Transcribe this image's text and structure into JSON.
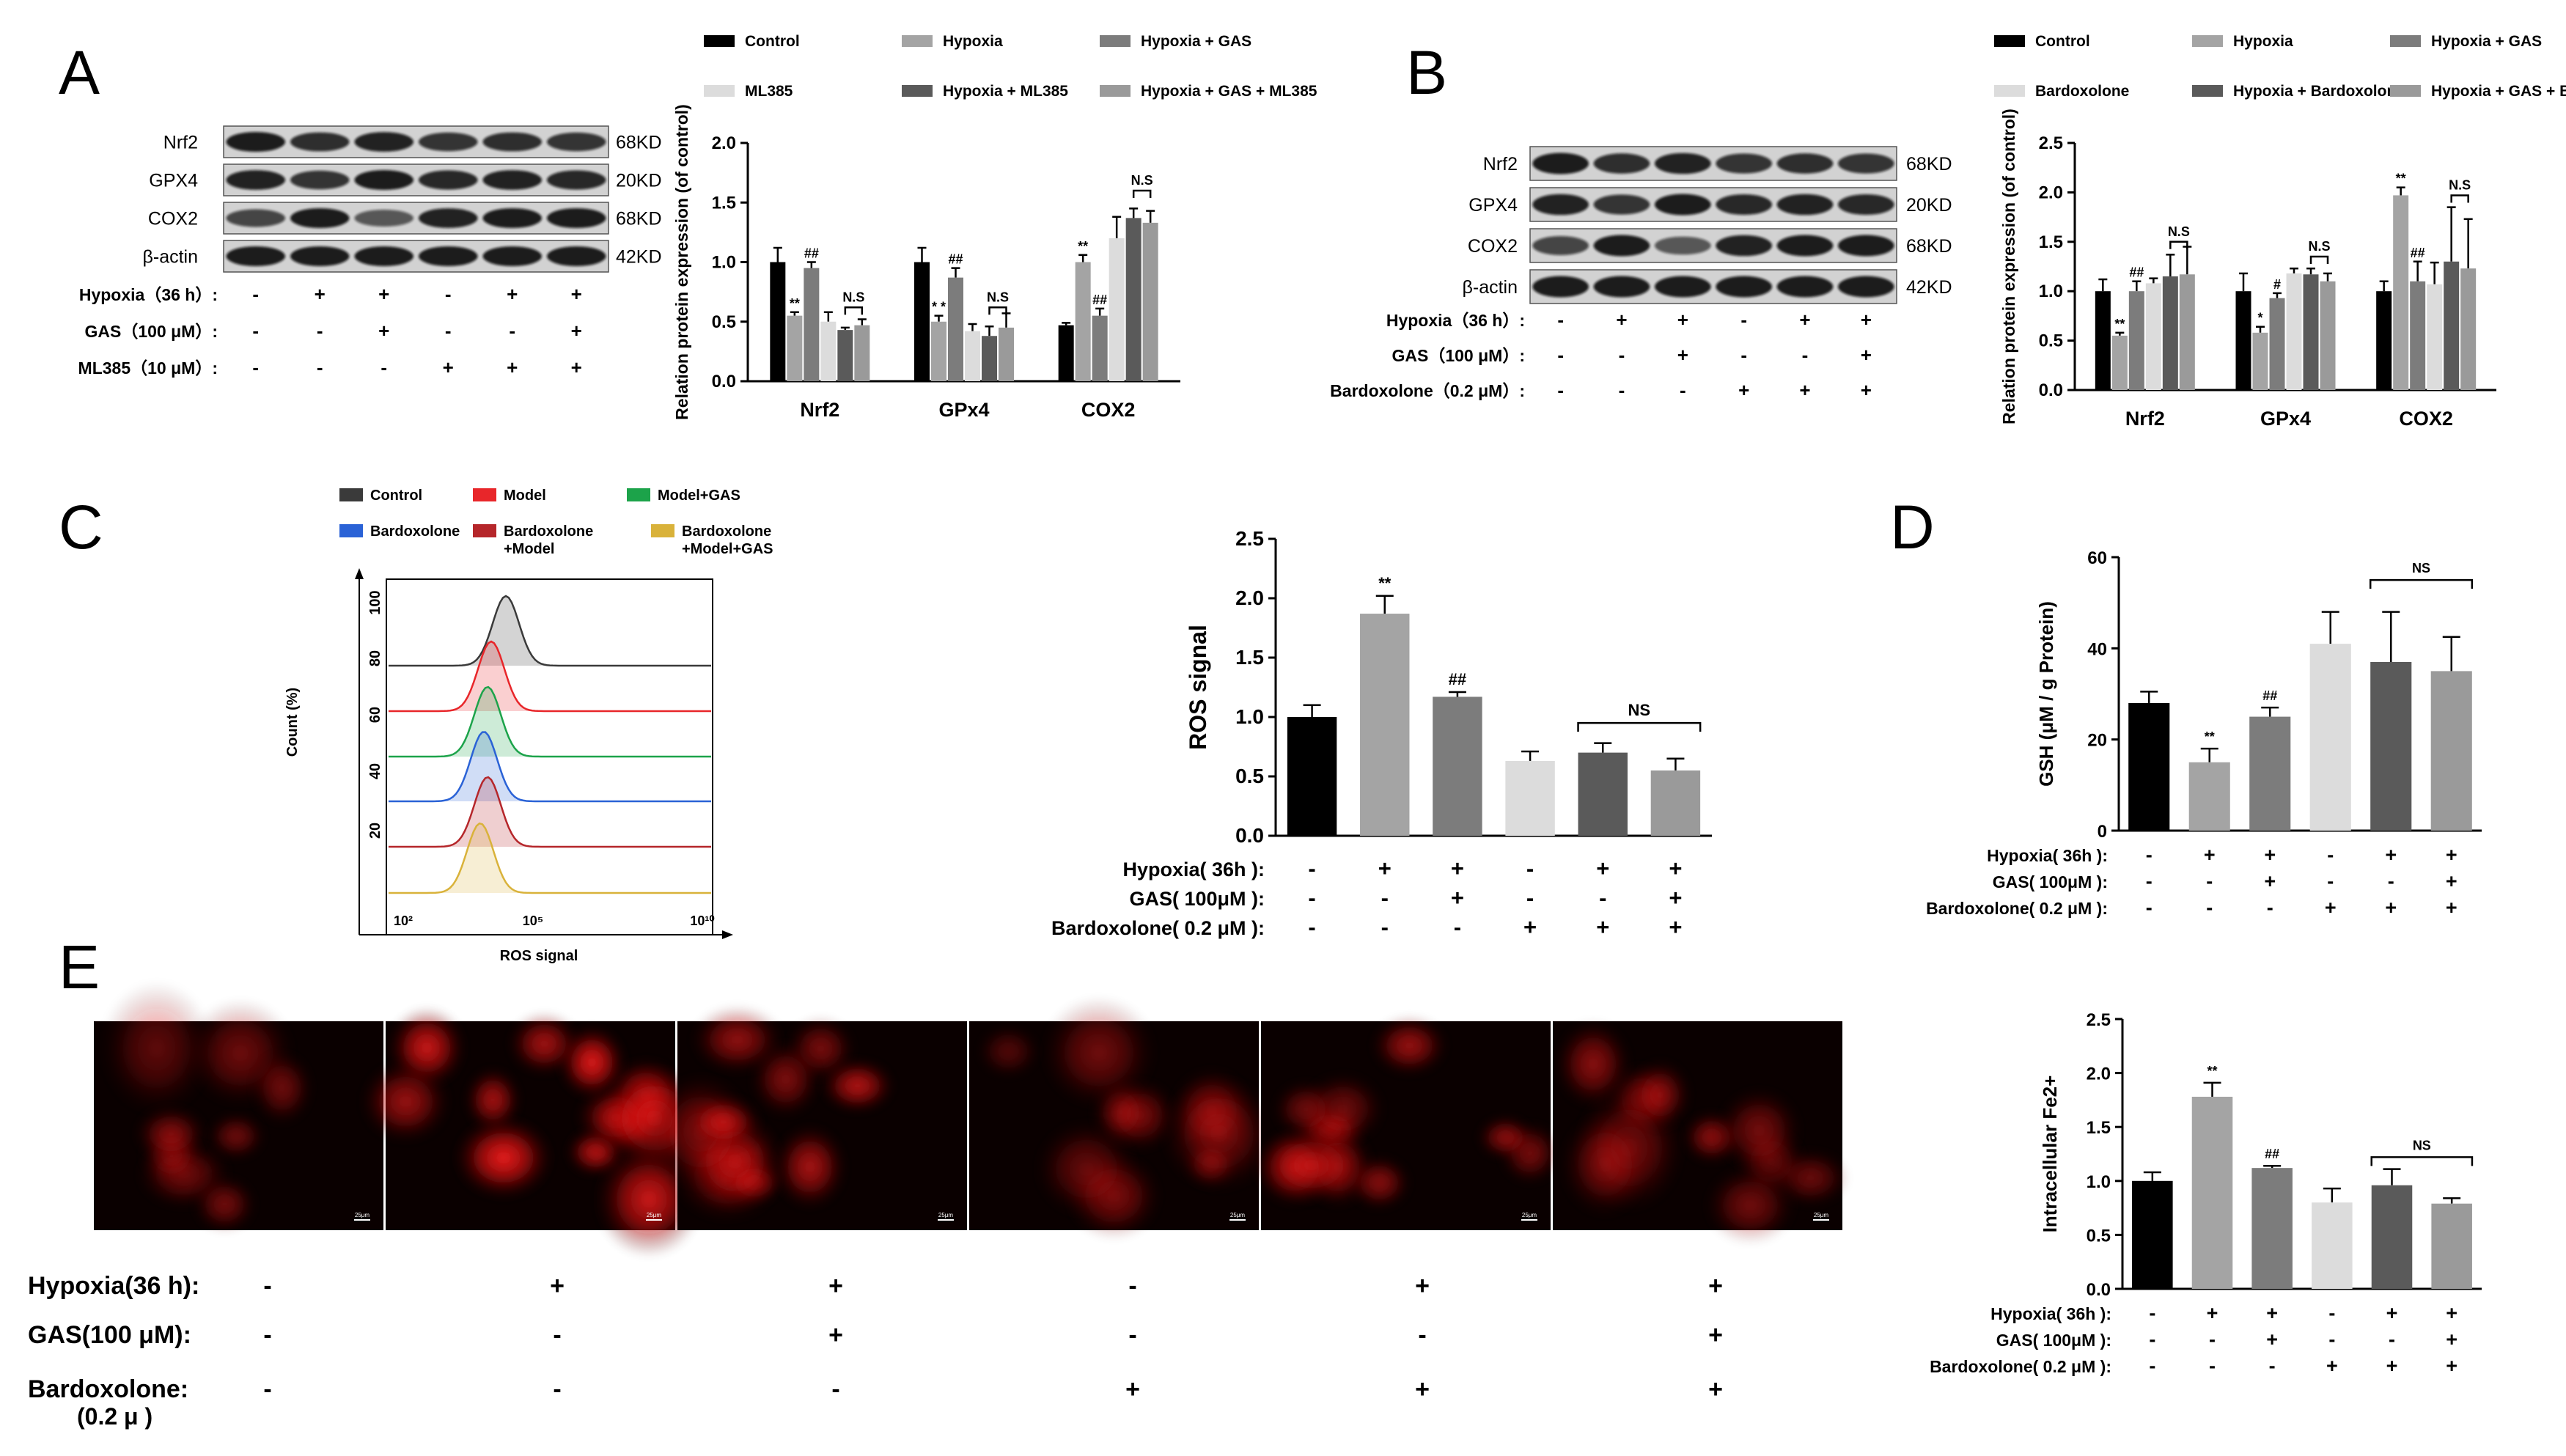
{
  "panels": {
    "A": "A",
    "B": "B",
    "C": "C",
    "D": "D",
    "E": "E"
  },
  "colors": {
    "control": "#000000",
    "hypoxia": "#a4a4a4",
    "hypoxia_gas": "#7c7c7c",
    "inhibitor": "#dcdcdc",
    "hypoxia_inhibitor": "#5a5a5a",
    "hypoxia_gas_inhibitor": "#9a9a9a",
    "flow_control": "#3a3a3a",
    "flow_model": "#e8262a",
    "flow_model_gas": "#1ca34a",
    "flow_bardoxolone": "#2a62d6",
    "flow_bardoxolone_model": "#b5262a",
    "flow_bardoxolone_model_gas": "#d9b23a",
    "fluorescence": "#ff1a1a"
  },
  "panelA": {
    "blot_rows": [
      {
        "protein": "Nrf2",
        "size": "68KD"
      },
      {
        "protein": "GPX4",
        "size": "20KD"
      },
      {
        "protein": "COX2",
        "size": "68KD"
      },
      {
        "protein": "β-actin",
        "size": "42KD"
      }
    ],
    "treatments": [
      {
        "label": "Hypoxia（36 h）:",
        "signs": [
          "-",
          "+",
          "+",
          "-",
          "+",
          "+"
        ]
      },
      {
        "label": "GAS（100 μM）:",
        "signs": [
          "-",
          "-",
          "+",
          "-",
          "-",
          "+"
        ]
      },
      {
        "label": "ML385（10 μM）:",
        "signs": [
          "-",
          "-",
          "-",
          "+",
          "+",
          "+"
        ]
      }
    ]
  },
  "panelB": {
    "blot_rows": [
      {
        "protein": "Nrf2",
        "size": "68KD"
      },
      {
        "protein": "GPX4",
        "size": "20KD"
      },
      {
        "protein": "COX2",
        "size": "68KD"
      },
      {
        "protein": "β-actin",
        "size": "42KD"
      }
    ],
    "treatments": [
      {
        "label": "Hypoxia（36 h）:",
        "signs": [
          "-",
          "+",
          "+",
          "-",
          "+",
          "+"
        ]
      },
      {
        "label": "GAS（100 μM）:",
        "signs": [
          "-",
          "-",
          "+",
          "-",
          "-",
          "+"
        ]
      },
      {
        "label": "Bardoxolone（0.2 μM）:",
        "signs": [
          "-",
          "-",
          "-",
          "+",
          "+",
          "+"
        ]
      }
    ]
  },
  "panelC_flow": {
    "legend": [
      "Control",
      "Model",
      "Model+GAS",
      "Bardoxolone",
      "Bardoxolone +Model",
      "Bardoxolone +Model+GAS"
    ],
    "ylabel": "Count (%)",
    "yticks": [
      "100",
      "80",
      "60",
      "40",
      "20"
    ],
    "xticks": [
      "10²",
      "10⁵",
      "10¹⁰"
    ],
    "xlabel": "ROS signal"
  },
  "panelE": {
    "scale_text": "25μm",
    "treatments": [
      {
        "label": "Hypoxia(36 h):",
        "signs": [
          "-",
          "+",
          "+",
          "-",
          "+",
          "+"
        ]
      },
      {
        "label": "GAS(100 μM):",
        "signs": [
          "-",
          "-",
          "+",
          "-",
          "-",
          "+"
        ]
      },
      {
        "label": "Bardoxolone:",
        "signs": [
          "-",
          "-",
          "-",
          "+",
          "+",
          "+"
        ]
      },
      {
        "label": "(0.2 μ )",
        "signs": []
      }
    ]
  },
  "chart_data": [
    {
      "id": "A_bar",
      "type": "bar",
      "legend": [
        "Control",
        "Hypoxia",
        "Hypoxia + GAS",
        "ML385",
        "Hypoxia + ML385",
        "Hypoxia + GAS + ML385"
      ],
      "categories": [
        "Nrf2",
        "GPx4",
        "COX2"
      ],
      "ylabel": "Relation protein expression (of control)",
      "ylim": [
        0,
        2.0
      ],
      "yticks": [
        "0.0",
        "0.5",
        "1.0",
        "1.5",
        "2.0"
      ],
      "values": [
        [
          1.0,
          0.55,
          0.95,
          0.5,
          0.43,
          0.47
        ],
        [
          1.0,
          0.5,
          0.87,
          0.42,
          0.38,
          0.45
        ],
        [
          0.47,
          1.0,
          0.55,
          1.2,
          1.37,
          1.33
        ]
      ],
      "errors": [
        [
          0.12,
          0.03,
          0.05,
          0.08,
          0.02,
          0.05
        ],
        [
          0.12,
          0.05,
          0.08,
          0.06,
          0.08,
          0.12
        ],
        [
          0.02,
          0.06,
          0.06,
          0.18,
          0.08,
          0.1
        ]
      ],
      "marks": [
        {
          "cat": 0,
          "bar": 1,
          "text": "**"
        },
        {
          "cat": 0,
          "bar": 2,
          "text": "##"
        },
        {
          "cat": 1,
          "bar": 1,
          "text": "* *"
        },
        {
          "cat": 1,
          "bar": 2,
          "text": "##"
        },
        {
          "cat": 2,
          "bar": 1,
          "text": "**"
        },
        {
          "cat": 2,
          "bar": 2,
          "text": "##"
        }
      ],
      "brackets": [
        {
          "cat": 0,
          "from": 4,
          "to": 5,
          "y": 0.62,
          "text": "N.S"
        },
        {
          "cat": 1,
          "from": 4,
          "to": 5,
          "y": 0.62,
          "text": "N.S"
        },
        {
          "cat": 2,
          "from": 4,
          "to": 5,
          "y": 1.6,
          "text": "N.S"
        }
      ]
    },
    {
      "id": "B_bar",
      "type": "bar",
      "legend": [
        "Control",
        "Hypoxia",
        "Hypoxia + GAS",
        "Bardoxolone",
        "Hypoxia + Bardoxolone",
        "Hypoxia + GAS + Bardoxolone"
      ],
      "categories": [
        "Nrf2",
        "GPx4",
        "COX2"
      ],
      "ylabel": "Relation protein expression (of control)",
      "ylim": [
        0,
        2.5
      ],
      "yticks": [
        "0.0",
        "0.5",
        "1.0",
        "1.5",
        "2.0",
        "2.5"
      ],
      "values": [
        [
          1.0,
          0.55,
          1.0,
          1.08,
          1.15,
          1.17
        ],
        [
          1.0,
          0.58,
          0.93,
          1.18,
          1.17,
          1.1
        ],
        [
          1.0,
          1.97,
          1.1,
          1.07,
          1.3,
          1.23
        ]
      ],
      "errors": [
        [
          0.12,
          0.03,
          0.1,
          0.05,
          0.22,
          0.28
        ],
        [
          0.18,
          0.06,
          0.05,
          0.05,
          0.06,
          0.08
        ],
        [
          0.1,
          0.08,
          0.2,
          0.22,
          0.55,
          0.5
        ]
      ],
      "marks": [
        {
          "cat": 0,
          "bar": 1,
          "text": "**"
        },
        {
          "cat": 0,
          "bar": 2,
          "text": "##"
        },
        {
          "cat": 1,
          "bar": 1,
          "text": "*"
        },
        {
          "cat": 1,
          "bar": 2,
          "text": "#"
        },
        {
          "cat": 2,
          "bar": 1,
          "text": "**"
        },
        {
          "cat": 2,
          "bar": 2,
          "text": "##"
        }
      ],
      "brackets": [
        {
          "cat": 0,
          "from": 4,
          "to": 5,
          "y": 1.5,
          "text": "N.S"
        },
        {
          "cat": 1,
          "from": 4,
          "to": 5,
          "y": 1.35,
          "text": "N.S"
        },
        {
          "cat": 2,
          "from": 4,
          "to": 5,
          "y": 1.97,
          "text": "N.S"
        }
      ]
    },
    {
      "id": "C_bar",
      "type": "bar",
      "categories": [
        "",
        "",
        "",
        "",
        "",
        ""
      ],
      "ylabel": "ROS signal",
      "ylim": [
        0,
        2.5
      ],
      "yticks": [
        "0.0",
        "0.5",
        "1.0",
        "1.5",
        "2.0",
        "2.5"
      ],
      "values": [
        1.0,
        1.87,
        1.17,
        0.63,
        0.7,
        0.55
      ],
      "errors": [
        0.1,
        0.15,
        0.04,
        0.08,
        0.08,
        0.1
      ],
      "marks": [
        {
          "bar": 1,
          "text": "**"
        },
        {
          "bar": 2,
          "text": "##"
        }
      ],
      "brackets": [
        {
          "from": 4,
          "to": 5,
          "y": 0.95,
          "text": "NS"
        }
      ],
      "treatments": [
        {
          "label": "Hypoxia( 36h ):",
          "signs": [
            "-",
            "+",
            "+",
            "-",
            "+",
            "+"
          ]
        },
        {
          "label": "GAS( 100μM ):",
          "signs": [
            "-",
            "-",
            "+",
            "-",
            "-",
            "+"
          ]
        },
        {
          "label": "Bardoxolone( 0.2 μM ):",
          "signs": [
            "-",
            "-",
            "-",
            "+",
            "+",
            "+"
          ]
        }
      ]
    },
    {
      "id": "D_bar",
      "type": "bar",
      "categories": [
        "",
        "",
        "",
        "",
        "",
        ""
      ],
      "ylabel": "GSH (μM / g Protein)",
      "ylim": [
        0,
        60
      ],
      "yticks": [
        "0",
        "20",
        "40",
        "60"
      ],
      "values": [
        28,
        15,
        25,
        41,
        37,
        35
      ],
      "errors": [
        2.5,
        3,
        2,
        7,
        11,
        7.5
      ],
      "marks": [
        {
          "bar": 1,
          "text": "**"
        },
        {
          "bar": 2,
          "text": "##"
        }
      ],
      "brackets": [
        {
          "from": 4,
          "to": 5,
          "y": 55,
          "text": "NS"
        }
      ],
      "treatments": [
        {
          "label": "Hypoxia( 36h ):",
          "signs": [
            "-",
            "+",
            "+",
            "-",
            "+",
            "+"
          ]
        },
        {
          "label": "GAS( 100μM ):",
          "signs": [
            "-",
            "-",
            "+",
            "-",
            "-",
            "+"
          ]
        },
        {
          "label": "Bardoxolone( 0.2 μM ):",
          "signs": [
            "-",
            "-",
            "-",
            "+",
            "+",
            "+"
          ]
        }
      ]
    },
    {
      "id": "E_bar",
      "type": "bar",
      "categories": [
        "",
        "",
        "",
        "",
        "",
        ""
      ],
      "ylabel": "Intracellular Fe2+",
      "ylim": [
        0,
        2.5
      ],
      "yticks": [
        "0.0",
        "0.5",
        "1.0",
        "1.5",
        "2.0",
        "2.5"
      ],
      "values": [
        1.0,
        1.78,
        1.12,
        0.8,
        0.96,
        0.79
      ],
      "errors": [
        0.08,
        0.13,
        0.02,
        0.13,
        0.15,
        0.05
      ],
      "marks": [
        {
          "bar": 1,
          "text": "**"
        },
        {
          "bar": 2,
          "text": "##"
        }
      ],
      "brackets": [
        {
          "from": 4,
          "to": 5,
          "y": 1.22,
          "text": "NS"
        }
      ],
      "treatments": [
        {
          "label": "Hypoxia( 36h ):",
          "signs": [
            "-",
            "+",
            "+",
            "-",
            "+",
            "+"
          ]
        },
        {
          "label": "GAS( 100μM ):",
          "signs": [
            "-",
            "-",
            "+",
            "-",
            "-",
            "+"
          ]
        },
        {
          "label": "Bardoxolone( 0.2 μM ):",
          "signs": [
            "-",
            "-",
            "-",
            "+",
            "+",
            "+"
          ]
        }
      ]
    }
  ]
}
